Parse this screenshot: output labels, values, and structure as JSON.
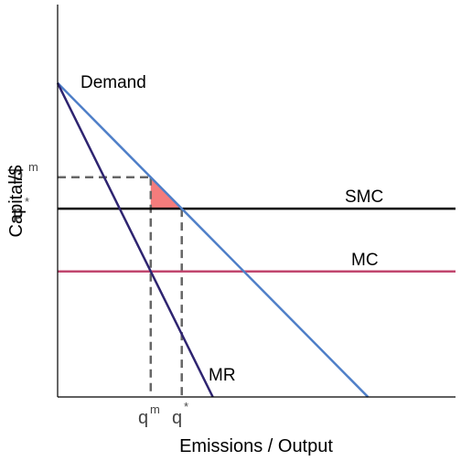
{
  "chart_data": {
    "type": "line",
    "title": "",
    "xlabel": "Emissions / Output",
    "ylabel": "Capital/$",
    "xlim": [
      0,
      100
    ],
    "ylim": [
      0,
      100
    ],
    "grid": false,
    "series": [
      {
        "name": "Demand",
        "kind": "line",
        "points": [
          [
            0,
            80
          ],
          [
            78,
            0
          ]
        ],
        "color": "#4f7fc8"
      },
      {
        "name": "MR",
        "kind": "line",
        "points": [
          [
            0,
            80
          ],
          [
            39,
            0
          ]
        ],
        "color": "#2e2470"
      },
      {
        "name": "SMC",
        "kind": "hline",
        "y": 48,
        "color": "#000000"
      },
      {
        "name": "MC",
        "kind": "hline",
        "y": 32,
        "color": "#c0466e"
      }
    ],
    "labels": {
      "demand": "Demand",
      "mr": "MR",
      "smc": "SMC",
      "mc": "MC"
    },
    "reference_points": {
      "pm": {
        "base": "p",
        "sup": "m",
        "y": 56
      },
      "pstar": {
        "base": "p",
        "sup": "*",
        "y": 48
      },
      "qm": {
        "base": "q",
        "sup": "m",
        "x": 23.4
      },
      "qstar": {
        "base": "q",
        "sup": "*",
        "x": 31.2
      }
    },
    "shaded_region": {
      "color": "#f47c7c",
      "vertices": [
        [
          23.4,
          56
        ],
        [
          23.4,
          48
        ],
        [
          31.2,
          48
        ]
      ]
    }
  }
}
